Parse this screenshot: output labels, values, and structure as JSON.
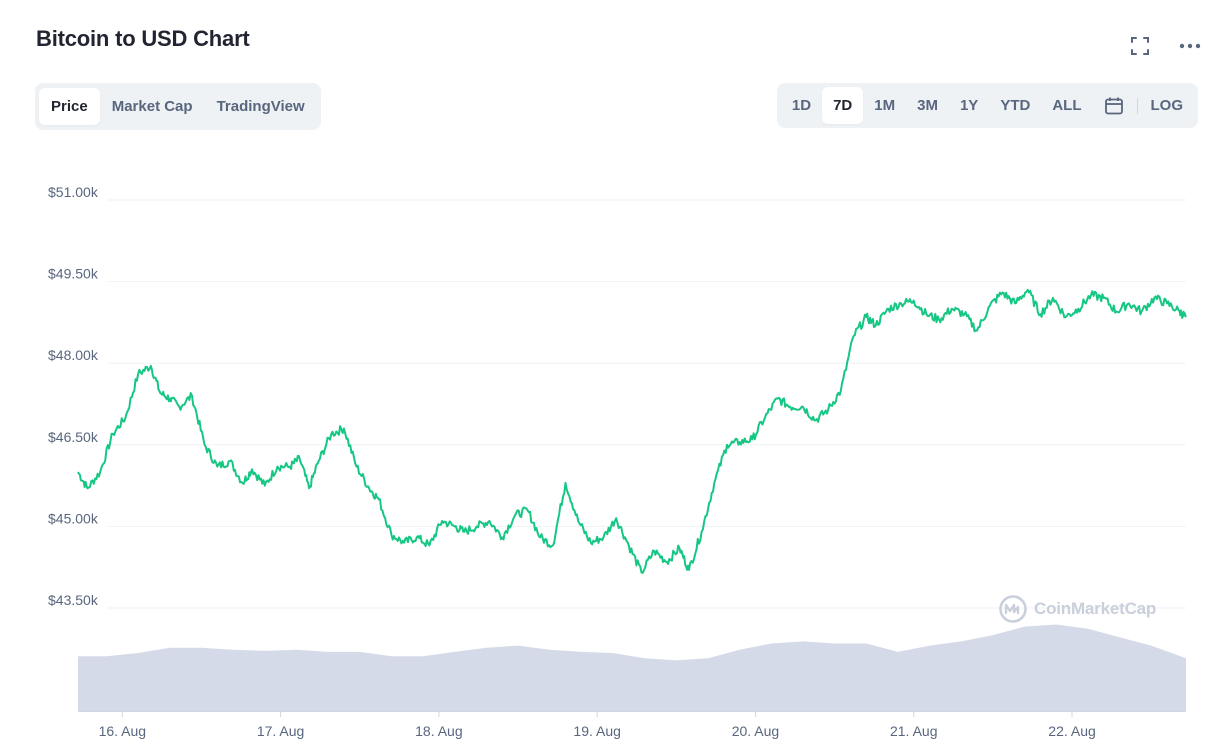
{
  "header": {
    "title": "Bitcoin to USD Chart"
  },
  "icons": {
    "fullscreen": "fullscreen-icon",
    "more": "more-icon",
    "calendar": "calendar-icon",
    "logo": "coinmarketcap-logo-icon"
  },
  "view_tabs": [
    {
      "label": "Price",
      "active": true
    },
    {
      "label": "Market Cap",
      "active": false
    },
    {
      "label": "TradingView",
      "active": false
    }
  ],
  "range_tabs": [
    {
      "label": "1D",
      "active": false
    },
    {
      "label": "7D",
      "active": true
    },
    {
      "label": "1M",
      "active": false
    },
    {
      "label": "3M",
      "active": false
    },
    {
      "label": "1Y",
      "active": false
    },
    {
      "label": "YTD",
      "active": false
    },
    {
      "label": "ALL",
      "active": false
    }
  ],
  "log_label": "LOG",
  "watermark": "CoinMarketCap",
  "colors": {
    "line": "#16c784",
    "volume": "#cfd6e4",
    "grid": "#eff2f5",
    "active_tab_text": "#222531",
    "tab_text": "#58667e"
  },
  "chart_data": {
    "type": "line",
    "title": "Bitcoin to USD Chart",
    "y_ticks": [
      "$51.00k",
      "$49.50k",
      "$48.00k",
      "$46.50k",
      "$45.00k",
      "$43.50k"
    ],
    "y_tick_values": [
      51000,
      49500,
      48000,
      46500,
      45000,
      43500
    ],
    "ylim": [
      43500,
      51000
    ],
    "x_ticks": [
      "16. Aug",
      "17. Aug",
      "18. Aug",
      "19. Aug",
      "20. Aug",
      "21. Aug",
      "22. Aug"
    ],
    "x_tick_values": [
      0.5,
      1.5,
      2.5,
      3.5,
      4.5,
      5.5,
      6.5
    ],
    "xlim": [
      0.22,
      7.22
    ],
    "grid": true,
    "series": [
      {
        "x": [
          0.22,
          0.28,
          0.36,
          0.44,
          0.52,
          0.6,
          0.68,
          0.74,
          0.8,
          0.86,
          0.94,
          1.02,
          1.1,
          1.18,
          1.26,
          1.32,
          1.4,
          1.48,
          1.56,
          1.62,
          1.68,
          1.74,
          1.82,
          1.9,
          1.98,
          2.06,
          2.12,
          2.2,
          2.28,
          2.36,
          2.44,
          2.52,
          2.6,
          2.66,
          2.74,
          2.82,
          2.9,
          2.98,
          3.06,
          3.14,
          3.22,
          3.3,
          3.38,
          3.46,
          3.54,
          3.62,
          3.7,
          3.78,
          3.86,
          3.94,
          4.02,
          4.08,
          4.16,
          4.24,
          4.32,
          4.4,
          4.48,
          4.56,
          4.64,
          4.72,
          4.8,
          4.88,
          4.96,
          5.04,
          5.12,
          5.2,
          5.26,
          5.34,
          5.42,
          5.5,
          5.58,
          5.66,
          5.74,
          5.82,
          5.9,
          5.98,
          6.06,
          6.14,
          6.22,
          6.3,
          6.38,
          6.46,
          6.54,
          6.62,
          6.7,
          6.78,
          6.86,
          6.94,
          7.02,
          7.1,
          7.18,
          7.22
        ],
        "values": [
          46000,
          45700,
          46000,
          46700,
          47000,
          47800,
          47950,
          47450,
          47350,
          47200,
          47400,
          46500,
          46100,
          46200,
          45800,
          46050,
          45750,
          46100,
          46100,
          46250,
          45700,
          46200,
          46700,
          46800,
          46100,
          45700,
          45500,
          44850,
          44700,
          44800,
          44650,
          45100,
          45000,
          44900,
          45000,
          45100,
          44800,
          45200,
          45300,
          44800,
          44650,
          45800,
          45100,
          44700,
          44800,
          45150,
          44650,
          44150,
          44550,
          44350,
          44600,
          44200,
          44900,
          45800,
          46500,
          46550,
          46600,
          47000,
          47350,
          47200,
          47200,
          46950,
          47150,
          47500,
          48500,
          48850,
          48700,
          49000,
          49100,
          49150,
          48900,
          48800,
          49000,
          48900,
          48600,
          49050,
          49300,
          49100,
          49350,
          48900,
          49200,
          48850,
          49000,
          49250,
          49200,
          48950,
          49100,
          48950,
          49200,
          49100,
          48950,
          48850
        ]
      }
    ],
    "volume_series": {
      "x": [
        0.22,
        0.4,
        0.6,
        0.8,
        1.0,
        1.2,
        1.4,
        1.6,
        1.8,
        2.0,
        2.2,
        2.4,
        2.6,
        2.8,
        3.0,
        3.2,
        3.4,
        3.6,
        3.8,
        4.0,
        4.2,
        4.4,
        4.6,
        4.8,
        5.0,
        5.2,
        5.4,
        5.6,
        5.8,
        6.0,
        6.2,
        6.4,
        6.6,
        6.8,
        7.0,
        7.22
      ],
      "values": [
        0.52,
        0.52,
        0.55,
        0.6,
        0.6,
        0.58,
        0.57,
        0.58,
        0.56,
        0.56,
        0.52,
        0.52,
        0.56,
        0.6,
        0.62,
        0.58,
        0.56,
        0.55,
        0.5,
        0.48,
        0.5,
        0.58,
        0.64,
        0.66,
        0.64,
        0.64,
        0.56,
        0.62,
        0.66,
        0.72,
        0.8,
        0.82,
        0.78,
        0.7,
        0.62,
        0.5
      ]
    }
  }
}
